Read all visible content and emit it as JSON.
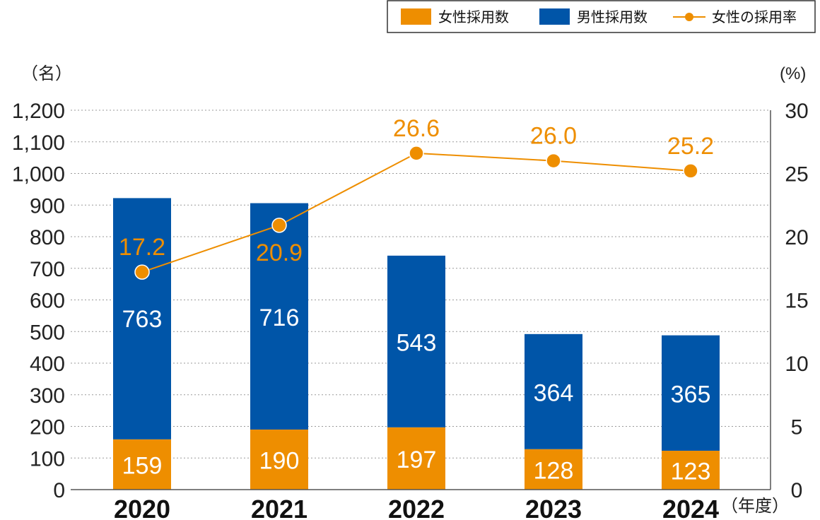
{
  "chart_data": {
    "type": "bar",
    "stacked": true,
    "categories": [
      "2020",
      "2021",
      "2022",
      "2023",
      "2024"
    ],
    "series": [
      {
        "name": "女性採用数",
        "values": [
          159,
          190,
          197,
          128,
          123
        ],
        "color": "#ee8e00",
        "axis": "left"
      },
      {
        "name": "男性採用数",
        "values": [
          763,
          716,
          543,
          364,
          365
        ],
        "color": "#0055a8",
        "axis": "left"
      }
    ],
    "line_series": [
      {
        "name": "女性の採用率",
        "values": [
          17.2,
          20.9,
          26.6,
          26.0,
          25.2
        ],
        "labels": [
          "17.2",
          "20.9",
          "26.6",
          "26.0",
          "25.2"
        ],
        "color": "#ee8e00",
        "axis": "right"
      }
    ],
    "ylabel": "（名）",
    "y2label": "(%)",
    "xlabel": "（年度）",
    "ylim": [
      0,
      1200
    ],
    "y2lim": [
      0,
      30
    ],
    "yticks": [
      "0",
      "100",
      "200",
      "300",
      "400",
      "500",
      "600",
      "700",
      "800",
      "900",
      "1,000",
      "1,100",
      "1,200"
    ],
    "y2ticks": [
      "0",
      "5",
      "10",
      "15",
      "20",
      "25",
      "30"
    ],
    "grid": true,
    "legend": "top-right",
    "legend_items": [
      "女性採用数",
      "男性採用数",
      "女性の採用率"
    ]
  }
}
